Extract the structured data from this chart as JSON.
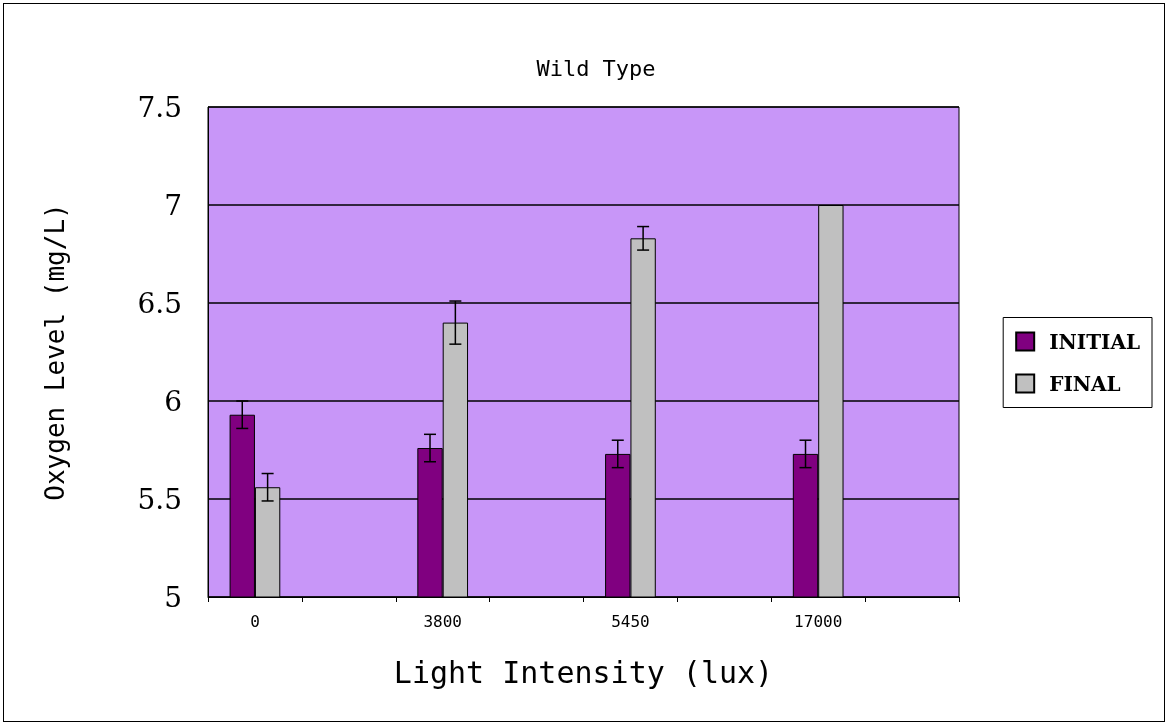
{
  "chart_data": {
    "type": "bar",
    "title": "Wild Type",
    "xlabel": "Light Intensity (lux)",
    "ylabel": "Oxygen Level (mg/L)",
    "categories": [
      "0",
      null,
      "3800",
      null,
      "5450",
      null,
      "17000",
      null
    ],
    "series": [
      {
        "name": "INITIAL",
        "color": "#800080",
        "values": [
          5.93,
          null,
          5.76,
          null,
          5.73,
          null,
          5.73,
          null
        ],
        "errors": [
          0.07,
          null,
          0.07,
          null,
          0.07,
          null,
          0.07,
          null
        ]
      },
      {
        "name": "FINAL",
        "color": "#c0c0c0",
        "values": [
          5.56,
          null,
          6.4,
          null,
          6.83,
          null,
          7.0,
          null
        ],
        "errors": [
          0.07,
          null,
          0.11,
          null,
          0.06,
          null,
          null,
          null
        ]
      }
    ],
    "ylim": [
      5,
      7.5
    ],
    "yticks": [
      5,
      5.5,
      6,
      6.5,
      7,
      7.5
    ],
    "grid": "y",
    "legend": "right"
  }
}
